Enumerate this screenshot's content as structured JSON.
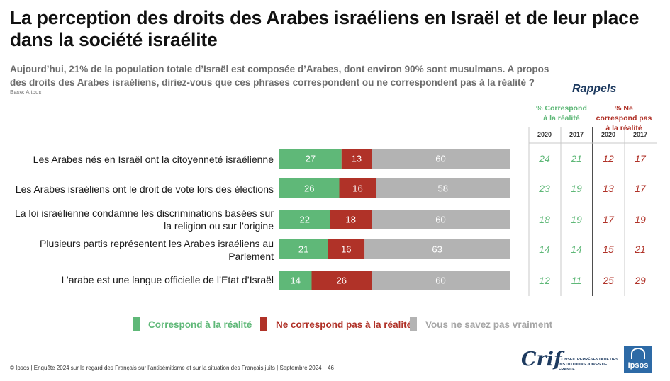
{
  "title": "La perception des droits des Arabes israéliens en Israël et de leur place dans la société israélite",
  "question": "Aujourd’hui, 21% de la population totale d’Israël est composée d’Arabes, dont environ 90% sont musulmans. A propos des droits des Arabes israéliens, diriez-vous que ces phrases correspondent ou ne correspondent pas à la réalité ?",
  "base": "Base: A tous",
  "rappels": {
    "title": "Rappels",
    "header_green": "% Correspond à la réalité",
    "header_red": "% Ne correspond pas à la réalité",
    "years": [
      "2020",
      "2017",
      "2020",
      "2017"
    ]
  },
  "legend": {
    "green": "Correspond à la réalité",
    "red": "Ne correspond pas à la réalité",
    "grey": "Vous ne savez pas vraiment"
  },
  "colors": {
    "green": "#5fb878",
    "red": "#b03228",
    "grey": "#b3b3b3",
    "navy": "#1d3a5f"
  },
  "footer": "© Ipsos | Enquête 2024 sur le regard des Français sur l’antisémitisme et sur la situation des Français juifs | Septembre 2024",
  "page_number": "46",
  "logos": {
    "crif": "Crif",
    "crif_sub": "CONSEIL REPRÉSENTATIF DES INSTITUTIONS JUIVES DE FRANCE",
    "ipsos": "Ipsos"
  },
  "chart_data": {
    "type": "bar",
    "orientation": "horizontal",
    "stacked": true,
    "categories": [
      "Les Arabes nés en Israël ont la citoyenneté israélienne",
      "Les Arabes israéliens ont le droit de vote lors des élections",
      "La loi israélienne condamne les discriminations basées sur la religion ou sur l’origine",
      "Plusieurs partis représentent les Arabes israéliens au Parlement",
      "L’arabe est une langue officielle de l’Etat d’Israël"
    ],
    "series": [
      {
        "name": "Correspond à la réalité",
        "values": [
          27,
          26,
          22,
          21,
          14
        ]
      },
      {
        "name": "Ne correspond pas à la réalité",
        "values": [
          13,
          16,
          18,
          16,
          26
        ]
      },
      {
        "name": "Vous ne savez pas vraiment",
        "values": [
          60,
          58,
          60,
          63,
          60
        ]
      }
    ],
    "xlim": [
      0,
      100
    ],
    "legend_position": "bottom",
    "rappels": {
      "correspond_2020": [
        24,
        23,
        18,
        14,
        12
      ],
      "correspond_2017": [
        21,
        19,
        19,
        14,
        11
      ],
      "ne_correspond_pas_2020": [
        12,
        13,
        17,
        15,
        25
      ],
      "ne_correspond_pas_2017": [
        17,
        17,
        19,
        21,
        29
      ]
    }
  }
}
